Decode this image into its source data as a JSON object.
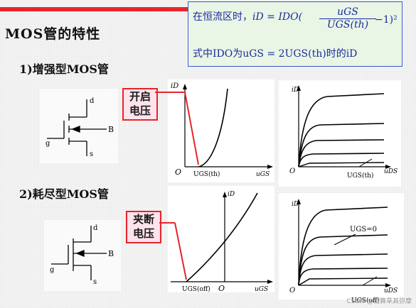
{
  "heading": {
    "title": "MOS管的特性",
    "sub1": "1)增强型MOS管",
    "sub2": "2)耗尽型MOS管"
  },
  "formula": {
    "line1_prefix": "在恒流区时，",
    "line1_lhs": "iD = IDO(",
    "numerator": "uGS",
    "denominator": "UGS(th)",
    "line1_tail": "−1)²",
    "line2": "式中IDO为uGS = 2UGS(th)时的iD"
  },
  "callouts": {
    "enhancement": "开启\n电压",
    "depletion": "夹断\n电压"
  },
  "circuit_labels": {
    "d": "d",
    "s": "s",
    "g": "g",
    "b": "B"
  },
  "graph_labels": {
    "iD": "iD",
    "origin": "O",
    "uGS": "uGS",
    "uDS": "uDS",
    "ugs_th": "UGS(th)",
    "ugs_off": "UGS(off)",
    "ugs_zero": "UGS=0"
  },
  "watermark": "CSDN @新算草其弥摩",
  "colors": {
    "accent_red": "#e8232a",
    "formula_border": "#3b5bd0",
    "formula_bg": "#e9f6e6",
    "callout_bg": "#ffe3ec"
  }
}
